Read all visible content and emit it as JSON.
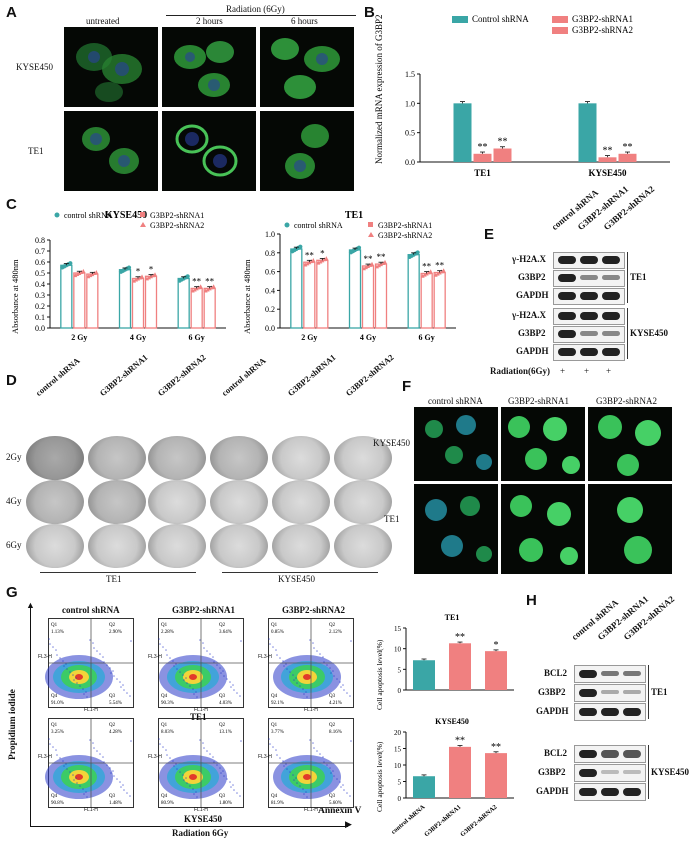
{
  "panels": {
    "A": "A",
    "B": "B",
    "C": "C",
    "D": "D",
    "E": "E",
    "F": "F",
    "G": "G",
    "H": "H"
  },
  "panel_a": {
    "col_untreated": "untreated",
    "radiation_header": "Radiation (6Gy)",
    "col_2h": "2 hours",
    "col_6h": "6 hours",
    "row1": "KYSE450",
    "row2": "TE1"
  },
  "panel_c": {
    "left_title": "KYSE450",
    "right_title": "TE1",
    "ylabel": "Absorbance at 480nm"
  },
  "panel_d": {
    "cols": [
      "control shRNA",
      "G3BP2-shRNA1",
      "G3BP2-shRNA2",
      "control shRNA",
      "G3BP2-shRNA1",
      "G3BP2-shRNA2"
    ],
    "rows": [
      "2Gy",
      "4Gy",
      "6Gy"
    ],
    "group1": "TE1",
    "group2": "KYSE450"
  },
  "panel_e": {
    "cols": [
      "control shRNA",
      "G3BP2-shRNA1",
      "G3BP2-shRNA2"
    ],
    "rows_te1": [
      "γ-H2A.X",
      "G3BP2",
      "GAPDH"
    ],
    "rows_kyse": [
      "γ-H2A.X",
      "G3BP2",
      "GAPDH"
    ],
    "cell_te1": "TE1",
    "cell_kyse": "KYSE450",
    "radiation_label": "Radiation(6Gy)",
    "plus": "+"
  },
  "panel_f": {
    "cols": [
      "control shRNA",
      "G3BP2-shRNA1",
      "G3BP2-shRNA2"
    ],
    "rows": [
      "KYSE450",
      "TE1"
    ]
  },
  "panel_g": {
    "cols": [
      "control shRNA",
      "G3BP2-shRNA1",
      "G3BP2-shRNA2"
    ],
    "yaxis": "Propidium iodide",
    "xaxis": "Annexin V",
    "cell_te1": "TE1",
    "cell_kyse": "KYSE450",
    "radiation": "Radiation 6Gy",
    "quadrants": [
      [
        "1.13%",
        "2.90%",
        "91.0%",
        "5.54%"
      ],
      [
        "2.28%",
        "3.64%",
        "90.3%",
        "4.03%"
      ],
      [
        "0.85%",
        "2.12%",
        "92.1%",
        "4.21%"
      ],
      [
        "3.25%",
        "4.28%",
        "90.8%",
        "1.48%"
      ],
      [
        "8.03%",
        "13.1%",
        "80.9%",
        "1.80%"
      ],
      [
        "3.77%",
        "8.16%",
        "81.9%",
        "5.60%"
      ]
    ],
    "axis_tick_fl3": "FL3-H",
    "axis_tick_fl1": "FL1-H"
  },
  "panel_h": {
    "cols": [
      "control shRNA",
      "G3BP2-shRNA1",
      "G3BP2-shRNA2"
    ],
    "rows_te1": [
      "BCL2",
      "G3BP2",
      "GAPDH"
    ],
    "rows_kyse": [
      "BCL2",
      "G3BP2",
      "GAPDH"
    ],
    "cell_te1": "TE1",
    "cell_kyse": "KYSE450"
  },
  "chart_data": [
    {
      "type": "bar",
      "panel": "B",
      "ylabel": "Normalized mRNA expression of G3BP2",
      "categories": [
        "TE1",
        "KYSE450"
      ],
      "series": [
        {
          "name": "Control shRNA",
          "values": [
            1.0,
            1.0
          ],
          "color": "#3aa6a6"
        },
        {
          "name": "G3BP2-shRNA1",
          "values": [
            0.14,
            0.08
          ],
          "color": "#f08080"
        },
        {
          "name": "G3BP2-shRNA2",
          "values": [
            0.23,
            0.14
          ],
          "color": "#f08080"
        }
      ],
      "annotations": [
        "**",
        "**",
        "**",
        "**"
      ],
      "ylim": [
        0,
        1.5
      ],
      "yticks": [
        "0.0",
        "0.5",
        "1.0",
        "1.5"
      ]
    },
    {
      "type": "bar",
      "panel": "C",
      "title": "KYSE450",
      "ylabel": "Absorbance at 480nm",
      "categories": [
        "2 Gy",
        "4 Gy",
        "6 Gy"
      ],
      "series": [
        {
          "name": "control shRNA",
          "values": [
            0.57,
            0.53,
            0.45
          ],
          "color": "#3aa6a6"
        },
        {
          "name": "G3BP2-shRNA1",
          "values": [
            0.5,
            0.45,
            0.36
          ],
          "color": "#f08080"
        },
        {
          "name": "G3BP2-shRNA2",
          "values": [
            0.49,
            0.47,
            0.36
          ],
          "color": "#f08080"
        }
      ],
      "annotations": [
        [
          "",
          ""
        ],
        [
          "*",
          "*"
        ],
        [
          "**",
          "**"
        ]
      ],
      "ylim": [
        0,
        0.8
      ],
      "yticks": [
        "0.0",
        "0.1",
        "0.2",
        "0.3",
        "0.4",
        "0.5",
        "0.6",
        "0.7",
        "0.8"
      ]
    },
    {
      "type": "bar",
      "panel": "C",
      "title": "TE1",
      "ylabel": "Absorbance at 480nm",
      "categories": [
        "2 Gy",
        "4 Gy",
        "6 Gy"
      ],
      "series": [
        {
          "name": "control shRNA",
          "values": [
            0.84,
            0.83,
            0.78
          ],
          "color": "#3aa6a6"
        },
        {
          "name": "G3BP2-shRNA1",
          "values": [
            0.7,
            0.66,
            0.58
          ],
          "color": "#f08080"
        },
        {
          "name": "G3BP2-shRNA2",
          "values": [
            0.72,
            0.68,
            0.59
          ],
          "color": "#f08080"
        }
      ],
      "annotations": [
        [
          "**",
          "*"
        ],
        [
          "**",
          "**"
        ],
        [
          "**",
          "**"
        ]
      ],
      "ylim": [
        0,
        1.0
      ],
      "yticks": [
        "0.0",
        "0.2",
        "0.4",
        "0.6",
        "0.8",
        "1.0"
      ]
    },
    {
      "type": "bar",
      "panel": "G",
      "title": "TE1",
      "ylabel": "Cell apoptosis level(%)",
      "categories": [
        "control shRNA",
        "G3BP2-shRNA1",
        "G3BP2-shRNA2"
      ],
      "values": [
        7.2,
        11.3,
        9.4
      ],
      "colors": [
        "#3aa6a6",
        "#f08080",
        "#f08080"
      ],
      "annotations": [
        "",
        "**",
        "*"
      ],
      "ylim": [
        0,
        15
      ],
      "yticks": [
        "0",
        "5",
        "10",
        "15"
      ]
    },
    {
      "type": "bar",
      "panel": "G",
      "title": "KYSE450",
      "ylabel": "Cell apoptosis level(%)",
      "categories": [
        "control shRNA",
        "G3BP2-shRNA1",
        "G3BP2-shRNA2"
      ],
      "values": [
        6.6,
        15.5,
        13.6
      ],
      "colors": [
        "#3aa6a6",
        "#f08080",
        "#f08080"
      ],
      "annotations": [
        "",
        "**",
        "**"
      ],
      "ylim": [
        0,
        20
      ],
      "yticks": [
        "0",
        "5",
        "10",
        "15",
        "20"
      ]
    }
  ]
}
